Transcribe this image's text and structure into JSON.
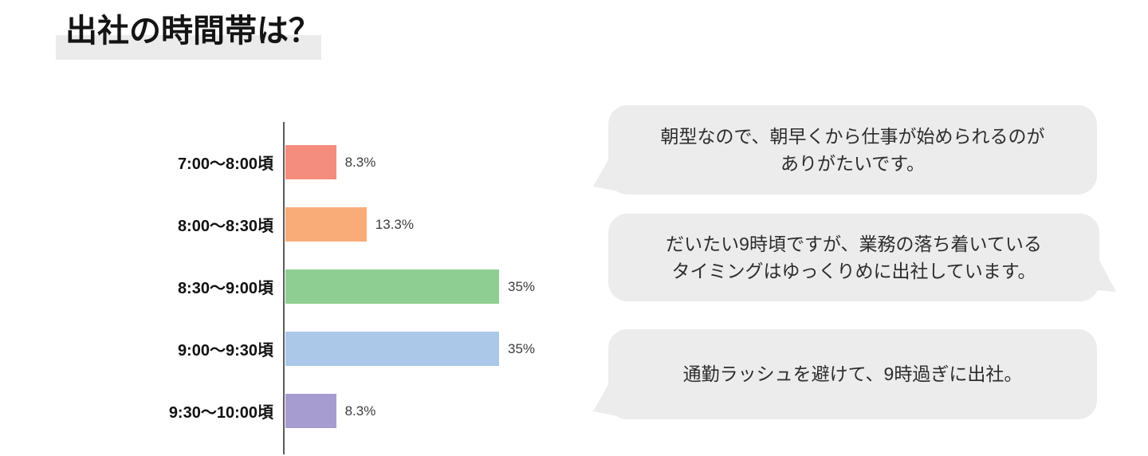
{
  "page": {
    "title": "出社の時間帯は？"
  },
  "chart_data": {
    "type": "bar",
    "orientation": "horizontal",
    "title": "出社の時間帯は？",
    "categories": [
      "7:00〜8:00頃",
      "8:00〜8:30頃",
      "8:30〜9:00頃",
      "9:00〜9:30頃",
      "9:30〜10:00頃"
    ],
    "values": [
      8.3,
      13.3,
      35,
      35,
      8.3
    ],
    "value_labels": [
      "8.3%",
      "13.3%",
      "35%",
      "35%",
      "8.3%"
    ],
    "unit": "%",
    "xlim": [
      0,
      40
    ],
    "grid": false,
    "legend": false,
    "bar_colors": [
      "#f48d7e",
      "#f9ac77",
      "#8fce92",
      "#abc8e9",
      "#a79ccf"
    ],
    "axis_color": "#5b5b5b"
  },
  "comments": [
    {
      "text": "朝型なので、朝早くから仕事が始められるのが\nありがたいです。",
      "tail_side": "left"
    },
    {
      "text": "だいたい9時頃ですが、業務の落ち着いている\nタイミングはゆっくりめに出社しています。",
      "tail_side": "right"
    },
    {
      "text": "通勤ラッシュを避けて、9時過ぎに出社。",
      "tail_side": "left"
    }
  ],
  "colors": {
    "title_highlight": "#ebebeb",
    "bubble_background": "#ececec",
    "background": "#ffffff",
    "category_label_text": "#111111",
    "value_label_text": "#3c3c3c"
  }
}
